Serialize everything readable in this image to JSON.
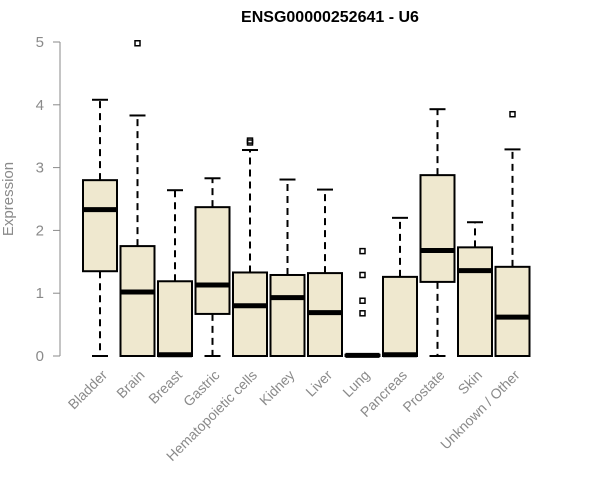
{
  "chart_data": {
    "type": "boxplot",
    "title": "ENSG00000252641 - U6",
    "ylabel": "Expression",
    "ylim": [
      0,
      5
    ],
    "yticks": [
      0,
      1,
      2,
      3,
      4,
      5
    ],
    "box_fill": "#efe8cf",
    "box_stroke": "#000000",
    "axis_color": "#8a8a8a",
    "categories": [
      "Bladder",
      "Brain",
      "Breast",
      "Gastric",
      "Hematopoietic cells",
      "Kidney",
      "Liver",
      "Lung",
      "Pancreas",
      "Prostate",
      "Skin",
      "Unknown / Other"
    ],
    "boxes": [
      {
        "min": 0,
        "q1": 1.35,
        "median": 2.33,
        "q3": 2.8,
        "max": 4.08,
        "outliers": []
      },
      {
        "min": 0,
        "q1": 0,
        "median": 1.02,
        "q3": 1.75,
        "max": 3.83,
        "outliers": [
          4.98
        ]
      },
      {
        "min": 0,
        "q1": 0,
        "median": 0.02,
        "q3": 1.19,
        "max": 2.64,
        "outliers": []
      },
      {
        "min": 0,
        "q1": 0.67,
        "median": 1.13,
        "q3": 2.37,
        "max": 2.83,
        "outliers": []
      },
      {
        "min": 0,
        "q1": 0,
        "median": 0.8,
        "q3": 1.33,
        "max": 3.28,
        "outliers": [
          3.4,
          3.43
        ]
      },
      {
        "min": 0,
        "q1": 0,
        "median": 0.93,
        "q3": 1.29,
        "max": 2.81,
        "outliers": []
      },
      {
        "min": 0,
        "q1": 0,
        "median": 0.69,
        "q3": 1.32,
        "max": 2.65,
        "outliers": []
      },
      {
        "min": 0,
        "q1": 0,
        "median": 0.01,
        "q3": 0.02,
        "max": 0.03,
        "outliers": [
          0.68,
          0.88,
          1.29,
          1.67
        ]
      },
      {
        "min": 0,
        "q1": 0,
        "median": 0.02,
        "q3": 1.26,
        "max": 2.2,
        "outliers": []
      },
      {
        "min": 0,
        "q1": 1.18,
        "median": 1.68,
        "q3": 2.88,
        "max": 3.93,
        "outliers": []
      },
      {
        "min": 0,
        "q1": 0,
        "median": 1.36,
        "q3": 1.73,
        "max": 2.13,
        "outliers": []
      },
      {
        "min": 0,
        "q1": 0,
        "median": 0.62,
        "q3": 1.42,
        "max": 3.29,
        "outliers": [
          3.85
        ]
      }
    ]
  }
}
